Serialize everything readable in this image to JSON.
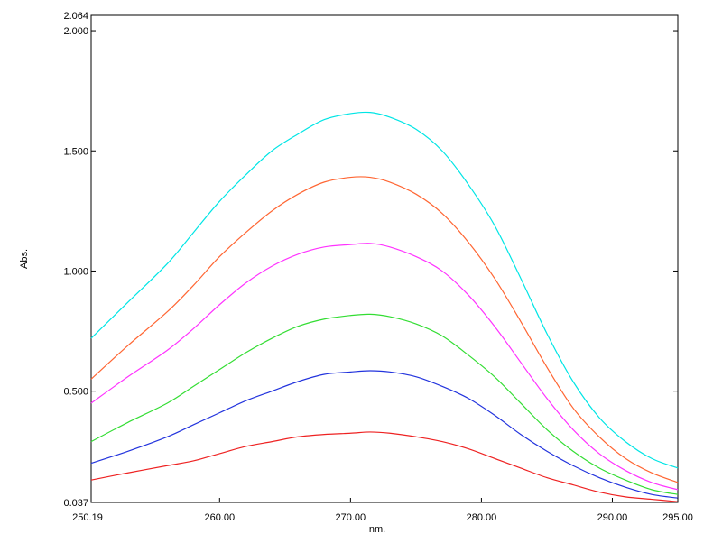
{
  "chart_data": {
    "type": "line",
    "title": "",
    "xlabel": "nm.",
    "ylabel": "Abs.",
    "xlim": [
      250.19,
      295.0
    ],
    "ylim": [
      0.037,
      2.064
    ],
    "x_ticks": [
      "250.19",
      "260.00",
      "270.00",
      "280.00",
      "290.00",
      "295.00"
    ],
    "y_ticks": [
      "0.037",
      "0.500",
      "1.000",
      "1.500",
      "2.000",
      "2.064"
    ],
    "x_tick_values": [
      250.19,
      260.0,
      270.0,
      280.0,
      290.0,
      295.0
    ],
    "y_tick_values": [
      0.037,
      0.5,
      1.0,
      1.5,
      2.0,
      2.064
    ],
    "grid": false,
    "legend": "none",
    "x": [
      250.19,
      253,
      256,
      258,
      260,
      262,
      264,
      266,
      268,
      270,
      271.5,
      273,
      275,
      277,
      279,
      281,
      283,
      285,
      287,
      289,
      291,
      293,
      295
    ],
    "series": [
      {
        "color": "#00e5e5",
        "values": [
          0.72,
          0.87,
          1.03,
          1.16,
          1.29,
          1.4,
          1.5,
          1.57,
          1.63,
          1.655,
          1.66,
          1.64,
          1.59,
          1.5,
          1.36,
          1.19,
          0.97,
          0.74,
          0.54,
          0.39,
          0.29,
          0.22,
          0.18
        ]
      },
      {
        "color": "#ff6633",
        "values": [
          0.55,
          0.69,
          0.83,
          0.94,
          1.06,
          1.16,
          1.25,
          1.32,
          1.37,
          1.39,
          1.39,
          1.37,
          1.32,
          1.24,
          1.12,
          0.97,
          0.79,
          0.6,
          0.43,
          0.31,
          0.22,
          0.16,
          0.12
        ]
      },
      {
        "color": "#ff33ff",
        "values": [
          0.45,
          0.56,
          0.67,
          0.76,
          0.86,
          0.95,
          1.02,
          1.07,
          1.1,
          1.11,
          1.115,
          1.1,
          1.06,
          1.0,
          0.9,
          0.77,
          0.62,
          0.47,
          0.34,
          0.24,
          0.17,
          0.12,
          0.09
        ]
      },
      {
        "color": "#33dd33",
        "values": [
          0.29,
          0.37,
          0.45,
          0.52,
          0.59,
          0.66,
          0.72,
          0.77,
          0.8,
          0.815,
          0.82,
          0.81,
          0.78,
          0.73,
          0.65,
          0.56,
          0.45,
          0.34,
          0.25,
          0.18,
          0.13,
          0.09,
          0.07
        ]
      },
      {
        "color": "#2233dd",
        "values": [
          0.2,
          0.25,
          0.31,
          0.36,
          0.41,
          0.46,
          0.5,
          0.54,
          0.57,
          0.58,
          0.585,
          0.58,
          0.56,
          0.52,
          0.47,
          0.4,
          0.32,
          0.25,
          0.19,
          0.14,
          0.1,
          0.07,
          0.055
        ]
      },
      {
        "color": "#ee2222",
        "values": [
          0.13,
          0.16,
          0.19,
          0.21,
          0.24,
          0.27,
          0.29,
          0.31,
          0.32,
          0.325,
          0.33,
          0.325,
          0.31,
          0.29,
          0.26,
          0.22,
          0.18,
          0.14,
          0.11,
          0.08,
          0.06,
          0.05,
          0.04
        ]
      }
    ]
  }
}
